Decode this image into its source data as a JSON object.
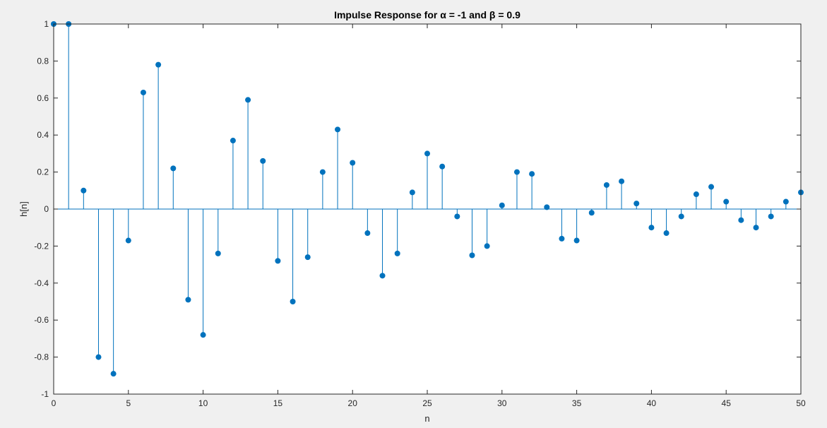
{
  "chart_data": {
    "type": "stem",
    "title": "Impulse Response for α = -1 and β = 0.9",
    "xlabel": "n",
    "ylabel": "h[n]",
    "xlim": [
      0,
      50
    ],
    "ylim": [
      -1,
      1
    ],
    "xticks": [
      0,
      5,
      10,
      15,
      20,
      25,
      30,
      35,
      40,
      45,
      50
    ],
    "yticks": [
      -1,
      -0.8,
      -0.6,
      -0.4,
      -0.2,
      0,
      0.2,
      0.4,
      0.6,
      0.8,
      1
    ],
    "ytick_labels": [
      "-1",
      "-0.8",
      "-0.6",
      "-0.4",
      "-0.2",
      "0",
      "0.2",
      "0.4",
      "0.6",
      "0.8",
      "1"
    ],
    "grid": false,
    "color": "#0072BD",
    "n": [
      0,
      1,
      2,
      3,
      4,
      5,
      6,
      7,
      8,
      9,
      10,
      11,
      12,
      13,
      14,
      15,
      16,
      17,
      18,
      19,
      20,
      21,
      22,
      23,
      24,
      25,
      26,
      27,
      28,
      29,
      30,
      31,
      32,
      33,
      34,
      35,
      36,
      37,
      38,
      39,
      40,
      41,
      42,
      43,
      44,
      45,
      46,
      47,
      48,
      49,
      50
    ],
    "values": [
      1,
      1,
      0.1,
      -0.8,
      -0.89,
      -0.17,
      0.63,
      0.78,
      0.22,
      -0.49,
      -0.68,
      -0.24,
      0.37,
      0.59,
      0.26,
      -0.28,
      -0.5,
      -0.26,
      0.2,
      0.43,
      0.25,
      -0.13,
      -0.36,
      -0.24,
      0.09,
      0.3,
      0.23,
      -0.04,
      -0.25,
      -0.2,
      0.02,
      0.2,
      0.19,
      0.01,
      -0.16,
      -0.17,
      -0.02,
      0.13,
      0.15,
      0.03,
      -0.1,
      -0.13,
      -0.04,
      0.08,
      0.12,
      0.04,
      -0.06,
      -0.1,
      -0.04,
      0.04,
      0.09
    ]
  }
}
